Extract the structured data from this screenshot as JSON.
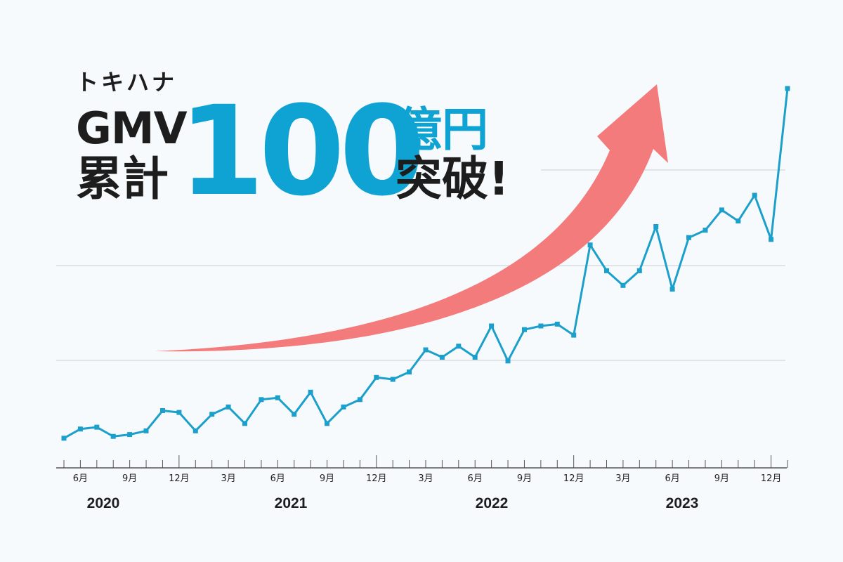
{
  "headline": {
    "brand": "トキハナ",
    "gmv": "GMV",
    "cumulative": "累計",
    "amount": "100",
    "unit": "億円",
    "exceed": "突破!"
  },
  "colors": {
    "line": "#1b9fcb",
    "arrow": "#f47b7b",
    "amount": "#0fa3d3",
    "grid": "#c8cdd0",
    "text": "#1d1d1d"
  },
  "chart_data": {
    "type": "line",
    "title": "",
    "xlabel": "",
    "ylabel": "",
    "ylim": [
      0,
      100
    ],
    "grid": "horizontal",
    "x_start": "2020-05",
    "x_end": "2024-02",
    "x_tick_labels": [
      "6月",
      "9月",
      "12月",
      "3月",
      "6月",
      "9月",
      "12月",
      "3月",
      "6月",
      "9月",
      "12月",
      "3月",
      "6月",
      "9月",
      "12月"
    ],
    "year_labels": [
      "2020",
      "2021",
      "2022",
      "2023"
    ],
    "series": [
      {
        "values": [
          5,
          7.5,
          8,
          5.5,
          6,
          7,
          12.5,
          12,
          7,
          11.5,
          13.5,
          9,
          15.5,
          16,
          11.5,
          17.5,
          9,
          13.5,
          15.5,
          21.5,
          21,
          23,
          29,
          27,
          30,
          27,
          35.5,
          26,
          34.5,
          35.5,
          36,
          33,
          57.5,
          50.5,
          46.5,
          50.5,
          62.5,
          45.5,
          59.5,
          61.5,
          67,
          64,
          71,
          59,
          100
        ]
      }
    ]
  }
}
